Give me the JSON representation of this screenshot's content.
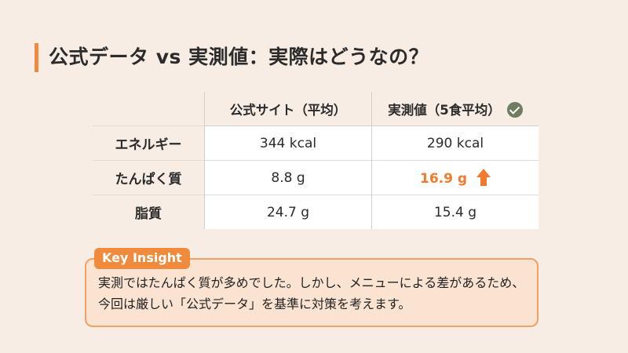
{
  "title": "公式データ vs 実測値：実際はどうなの？",
  "table": {
    "headers": {
      "official": "公式サイト（平均）",
      "measured": "実測値（5食平均）"
    },
    "rows": [
      {
        "label": "エネルギー",
        "official": "344 kcal",
        "measured": "290 kcal"
      },
      {
        "label": "たんぱく質",
        "official": "8.8 g",
        "measured": "16.9 g"
      },
      {
        "label": "脂質",
        "official": "24.7 g",
        "measured": "15.4 g"
      }
    ]
  },
  "insight": {
    "tag": "Key Insight",
    "text": "実測ではたんぱく質が多めでした。しかし、メニューによる差があるため、今回は厳しい「公式データ」を基準に対策を考えます。"
  },
  "colors": {
    "accent": "#f08a3c",
    "highlight": "#f07a2e",
    "check": "#6e7e5f",
    "background": "#f8ede4"
  },
  "icons": {
    "measured_header": "check-circle-icon",
    "protein_change": "arrow-up-icon"
  }
}
